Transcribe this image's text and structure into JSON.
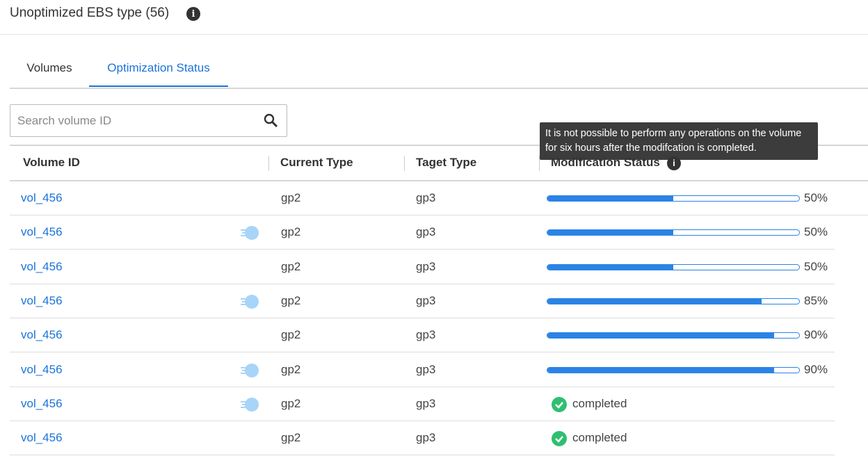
{
  "header": {
    "title": "Unoptimized EBS type (56)"
  },
  "tabs": {
    "items": [
      "Volumes",
      "Optimization Status"
    ],
    "active": 1
  },
  "search": {
    "placeholder": "Search volume ID"
  },
  "tooltip": "It is not possible to perform any operations on the volume for six hours after the modifcation is completed.",
  "table": {
    "columns": [
      "Volume ID",
      "Current Type",
      "Taget Type",
      "Modification Status"
    ],
    "rows": [
      {
        "id": "vol_456",
        "icon": false,
        "current": "gp2",
        "target": "gp3",
        "progress": 50,
        "progress_label": "50%"
      },
      {
        "id": "vol_456",
        "icon": true,
        "current": "gp2",
        "target": "gp3",
        "progress": 50,
        "progress_label": "50%"
      },
      {
        "id": "vol_456",
        "icon": false,
        "current": "gp2",
        "target": "gp3",
        "progress": 50,
        "progress_label": "50%"
      },
      {
        "id": "vol_456",
        "icon": true,
        "current": "gp2",
        "target": "gp3",
        "progress": 85,
        "progress_label": "85%"
      },
      {
        "id": "vol_456",
        "icon": false,
        "current": "gp2",
        "target": "gp3",
        "progress": 90,
        "progress_label": "90%"
      },
      {
        "id": "vol_456",
        "icon": true,
        "current": "gp2",
        "target": "gp3",
        "progress": 90,
        "progress_label": "90%"
      },
      {
        "id": "vol_456",
        "icon": true,
        "current": "gp2",
        "target": "gp3",
        "status": "completed"
      },
      {
        "id": "vol_456",
        "icon": false,
        "current": "gp2",
        "target": "gp3",
        "status": "completed"
      }
    ]
  }
}
